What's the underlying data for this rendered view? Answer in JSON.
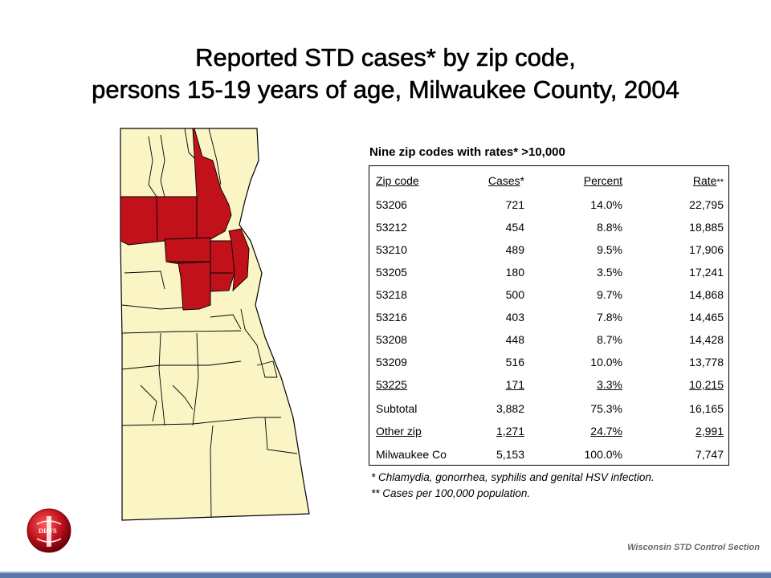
{
  "title": {
    "line1": "Reported STD cases* by zip code,",
    "line2": "persons 15-19 years of age, Milwaukee County, 2004"
  },
  "map": {
    "fill_normal": "#fbf5c5",
    "fill_highlight": "#c1121c",
    "border_color": "#000000",
    "highlighted_zips": [
      "53206",
      "53212",
      "53210",
      "53205",
      "53218",
      "53216",
      "53208",
      "53209",
      "53225"
    ]
  },
  "table": {
    "heading": "Nine zip codes with rates* >10,000",
    "headers": {
      "zip": "Zip code",
      "cases": "Cases",
      "cases_mark": "*",
      "pct": "Percent",
      "rate": "Rate",
      "rate_mark": "**"
    },
    "rows": [
      {
        "zip": "53206",
        "cases": "721",
        "pct": "14.0%",
        "rate": "22,795"
      },
      {
        "zip": "53212",
        "cases": "454",
        "pct": "8.8%",
        "rate": "18,885"
      },
      {
        "zip": "53210",
        "cases": "489",
        "pct": "9.5%",
        "rate": "17,906"
      },
      {
        "zip": "53205",
        "cases": "180",
        "pct": "3.5%",
        "rate": "17,241"
      },
      {
        "zip": "53218",
        "cases": "500",
        "pct": "9.7%",
        "rate": "14,868"
      },
      {
        "zip": "53216",
        "cases": "403",
        "pct": "7.8%",
        "rate": "14,465"
      },
      {
        "zip": "53208",
        "cases": "448",
        "pct": "8.7%",
        "rate": "14,428"
      },
      {
        "zip": "53209",
        "cases": "516",
        "pct": "10.0%",
        "rate": "13,778"
      },
      {
        "zip": "53225",
        "cases": "171",
        "pct": "3.3%",
        "rate": "10,215"
      },
      {
        "zip": "Subtotal",
        "cases": "3,882",
        "pct": "75.3%",
        "rate": "16,165"
      },
      {
        "zip": "Other zip",
        "cases": "1,271",
        "pct": "24.7%",
        "rate": "2,991"
      },
      {
        "zip": "Milwaukee Co",
        "cases": "5,153",
        "pct": "100.0%",
        "rate": "7,747"
      }
    ]
  },
  "footnotes": {
    "f1": "*  Chlamydia, gonorrhea, syphilis and genital HSV infection.",
    "f2": "** Cases per 100,000 population."
  },
  "logo": {
    "text": "DHFS",
    "color": "#c1121c"
  },
  "credit": "Wisconsin STD Control Section"
}
